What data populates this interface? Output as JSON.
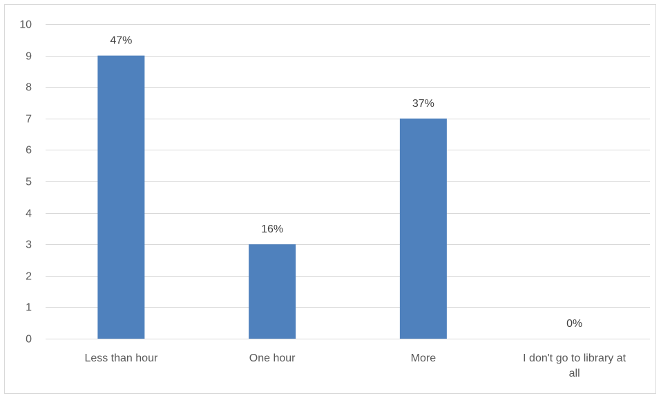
{
  "chart_data": {
    "type": "bar",
    "title": "",
    "xlabel": "",
    "ylabel": "",
    "categories": [
      [
        "Less than hour"
      ],
      [
        "One hour"
      ],
      [
        "More"
      ],
      [
        "I don't go to library at",
        "all"
      ]
    ],
    "values": [
      9,
      3,
      7,
      0
    ],
    "data_labels": [
      "47%",
      "16%",
      "37%",
      "0%"
    ],
    "ylim": [
      0,
      10
    ],
    "yticks": [
      "0",
      "1",
      "2",
      "3",
      "4",
      "5",
      "6",
      "7",
      "8",
      "9",
      "10"
    ],
    "grid": true,
    "legend": "none",
    "bar_color": "#4f81bd",
    "grid_color": "#d9d9d9"
  }
}
